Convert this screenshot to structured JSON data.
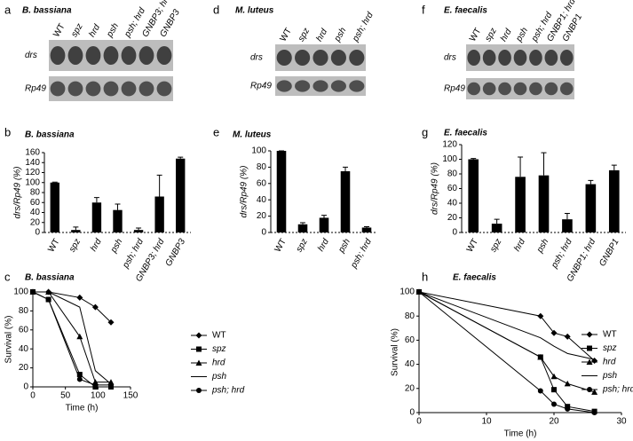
{
  "panel_letters": [
    "a",
    "b",
    "c",
    "d",
    "e",
    "f",
    "g",
    "h"
  ],
  "blots": [
    {
      "title": "B. bassiana",
      "lanes": [
        "WT",
        "spz",
        "hrd",
        "psh",
        "psh; hrd",
        "GNBP3; hrd",
        "GNBP3"
      ],
      "rows": [
        "drs",
        "Rp49"
      ]
    },
    {
      "title": "M. luteus",
      "lanes": [
        "WT",
        "spz",
        "hrd",
        "psh",
        "psh; hrd"
      ],
      "rows": [
        "drs",
        "Rp49"
      ]
    },
    {
      "title": "E. faecalis",
      "lanes": [
        "WT",
        "spz",
        "hrd",
        "psh",
        "psh; hrd",
        "GNBP1; hrd",
        "GNBP1"
      ],
      "rows": [
        "drs",
        "Rp49"
      ]
    }
  ],
  "chart_data": [
    {
      "type": "bar",
      "title": "B. bassiana",
      "y_label": "drs/Rp49 (%)",
      "categories": [
        "WT",
        "spz",
        "hrd",
        "psh",
        "psh; hrd",
        "GNBP3; hrd",
        "GNBP3"
      ],
      "values": [
        100,
        5,
        60,
        45,
        5,
        72,
        148
      ],
      "errors": [
        1,
        6,
        10,
        12,
        4,
        43,
        3
      ],
      "color": "#000000",
      "ylim": [
        0,
        160
      ],
      "yticks": [
        0,
        20,
        40,
        60,
        80,
        100,
        120,
        140,
        160
      ]
    },
    {
      "type": "bar",
      "title": "M. luteus",
      "y_label": "drs/Rp49 (%)",
      "categories": [
        "WT",
        "spz",
        "hrd",
        "psh",
        "psh; hrd"
      ],
      "values": [
        100,
        10,
        18,
        75,
        6
      ],
      "errors": [
        0,
        2,
        3,
        5,
        1
      ],
      "color": "#000000",
      "ylim": [
        0,
        100
      ],
      "yticks": [
        0,
        20,
        40,
        60,
        80,
        100
      ]
    },
    {
      "type": "bar",
      "title": "E. faecalis",
      "y_label": "drs/Rp49 (%)",
      "categories": [
        "WT",
        "spz",
        "hrd",
        "psh",
        "psh; hrd",
        "GNBP1; hrd",
        "GNBP1"
      ],
      "values": [
        100,
        12,
        76,
        78,
        18,
        66,
        85
      ],
      "errors": [
        1,
        6,
        27,
        31,
        8,
        5,
        7
      ],
      "color": "#000000",
      "ylim": [
        0,
        120
      ],
      "yticks": [
        0,
        20,
        40,
        60,
        80,
        100,
        120
      ]
    },
    {
      "type": "line",
      "title": "B. bassiana",
      "x_label": "Time (h)",
      "y_label": "Survival (%)",
      "x": [
        0,
        24,
        72,
        96,
        120
      ],
      "series": [
        {
          "name": "WT",
          "color": "#000000",
          "marker": "diamond",
          "values": [
            100,
            100,
            94,
            84,
            68
          ]
        },
        {
          "name": "spz",
          "color": "#000000",
          "marker": "square",
          "values": [
            100,
            92,
            13,
            0,
            0
          ]
        },
        {
          "name": "hrd",
          "color": "#000000",
          "marker": "triangle",
          "values": [
            100,
            100,
            53,
            5,
            5
          ]
        },
        {
          "name": "psh",
          "color": "#000000",
          "marker": "none",
          "values": [
            100,
            100,
            84,
            17,
            3
          ]
        },
        {
          "name": "psh; hrd",
          "color": "#000000",
          "marker": "circle",
          "values": [
            100,
            92,
            8,
            2,
            2
          ]
        }
      ],
      "xlim": [
        0,
        150
      ],
      "xticks": [
        0,
        50,
        100,
        150
      ],
      "ylim": [
        0,
        100
      ],
      "yticks": [
        0,
        20,
        40,
        60,
        80,
        100
      ],
      "legend": "right"
    },
    {
      "type": "line",
      "title": "E. faecalis",
      "x_label": "Time (h)",
      "y_label": "Survival (%)",
      "x": [
        0,
        18,
        20,
        22,
        26
      ],
      "series": [
        {
          "name": "WT",
          "color": "#000000",
          "marker": "diamond",
          "values": [
            100,
            80,
            66,
            63,
            43
          ]
        },
        {
          "name": "spz",
          "color": "#000000",
          "marker": "square",
          "values": [
            100,
            46,
            19,
            5,
            1
          ]
        },
        {
          "name": "hrd",
          "color": "#000000",
          "marker": "triangle",
          "values": [
            100,
            46,
            30,
            24,
            17
          ]
        },
        {
          "name": "psh",
          "color": "#000000",
          "marker": "none",
          "values": [
            100,
            62,
            55,
            49,
            44
          ]
        },
        {
          "name": "psh; hrd",
          "color": "#000000",
          "marker": "circle",
          "values": [
            100,
            18,
            7,
            3,
            0
          ]
        }
      ],
      "xlim": [
        0,
        30
      ],
      "xticks": [
        0,
        10,
        20,
        30
      ],
      "ylim": [
        0,
        100
      ],
      "yticks": [
        0,
        20,
        40,
        60,
        80,
        100
      ],
      "legend": "right"
    }
  ]
}
